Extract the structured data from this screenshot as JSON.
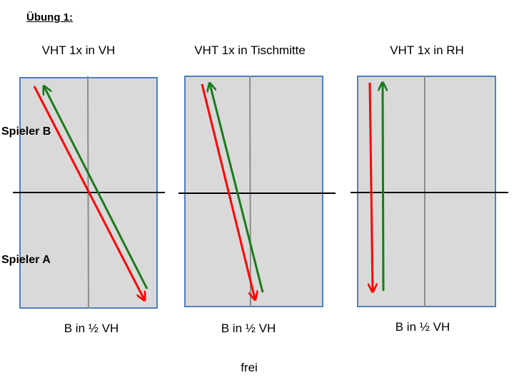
{
  "heading": "Übung 1:",
  "players": {
    "top": "Spieler B",
    "bottom": "Spieler A"
  },
  "tables": [
    {
      "title": "VHT 1x in VH",
      "bottom_label": "B in ½ VH"
    },
    {
      "title": "VHT 1x in Tischmitte",
      "bottom_label": "B in ½ VH"
    },
    {
      "title": "VHT 1x in RH",
      "bottom_label": "B in ½ VH"
    }
  ],
  "footer": "frei",
  "colors": {
    "table_fill": "#d9d9d9",
    "table_border": "#4f7fbf",
    "center_line": "#8c8c8c",
    "net": "#000000",
    "red_arrow": "#ff0000",
    "green_arrow": "#1a7a1a"
  }
}
